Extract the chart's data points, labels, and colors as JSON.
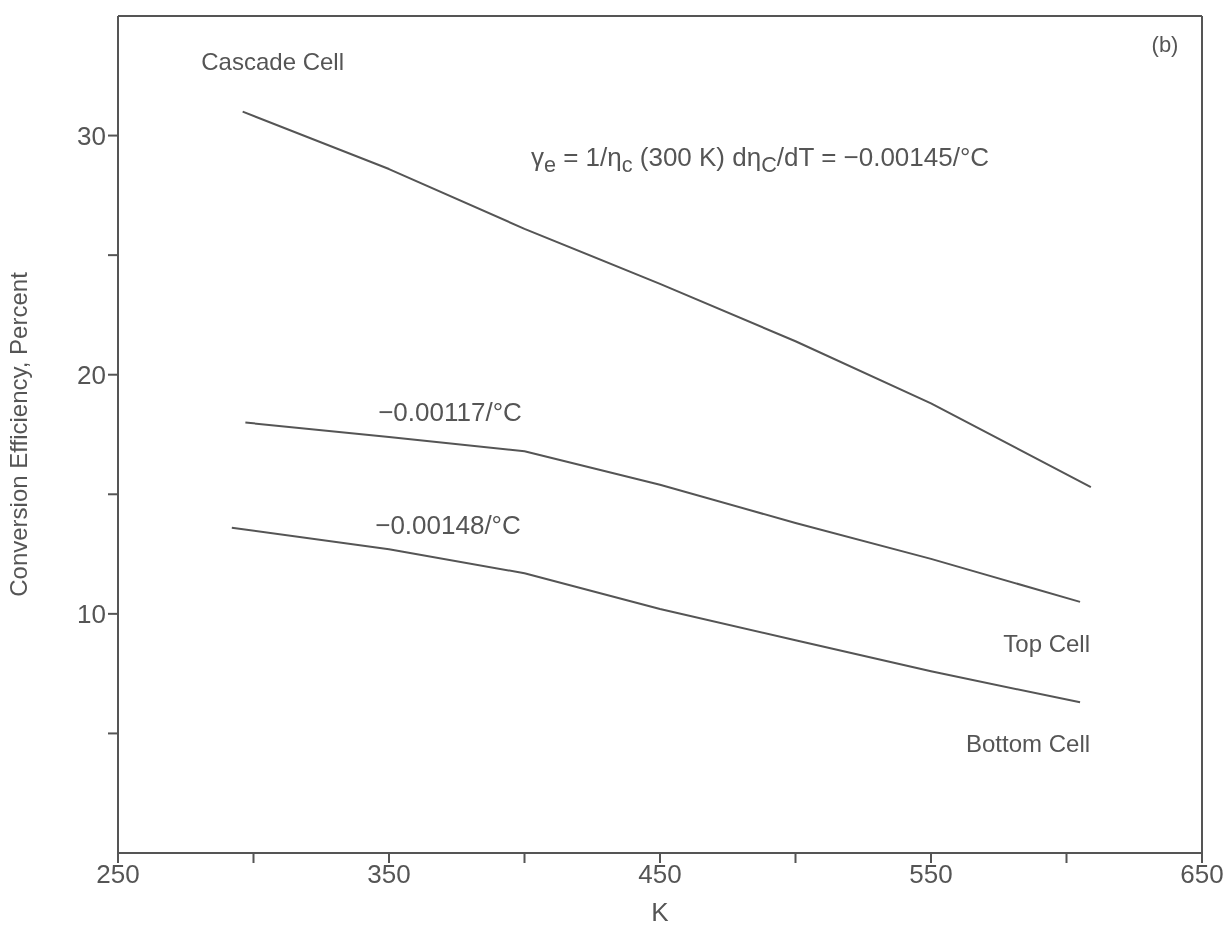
{
  "chart_data": {
    "type": "line",
    "xlabel": "K",
    "ylabel": "Conversion Efficiency, Percent",
    "xlim": [
      250,
      650
    ],
    "xticks": [
      250,
      {
        "value": 300,
        "label": null
      },
      350,
      {
        "value": 400,
        "label": null
      },
      450,
      {
        "value": 500,
        "label": null
      },
      550,
      {
        "value": 600,
        "label": null
      },
      650
    ],
    "ylim": [
      0,
      35
    ],
    "yticks": [
      {
        "value": 5,
        "label": null
      },
      10,
      {
        "value": 15,
        "label": null
      },
      20,
      {
        "value": 25,
        "label": null
      },
      30
    ],
    "marker": "none",
    "line_style": "solid",
    "series": [
      {
        "name": "Cascade Cell",
        "color": "#555555",
        "x": [
          296,
          350,
          400,
          450,
          500,
          550,
          609
        ],
        "values": [
          31.0,
          28.6,
          26.1,
          23.8,
          21.4,
          18.8,
          15.3
        ]
      },
      {
        "name": "Top Cell",
        "color": "#555555",
        "x": [
          297,
          350,
          400,
          450,
          500,
          550,
          605
        ],
        "values": [
          18.0,
          17.4,
          16.8,
          15.4,
          13.8,
          12.3,
          10.5
        ]
      },
      {
        "name": "Bottom Cell",
        "color": "#555555",
        "x": [
          292,
          350,
          400,
          450,
          500,
          550,
          605
        ],
        "values": [
          13.6,
          12.7,
          11.7,
          10.2,
          8.9,
          7.6,
          6.3
        ]
      }
    ],
    "annotations": [
      "γ$_{e}$ = 1/η$_{c}$ (300 K) dη$_{C}$/dT = −0.00145/°C",
      "−0.00117/°C",
      "−0.00148/°C",
      "(b)"
    ]
  }
}
